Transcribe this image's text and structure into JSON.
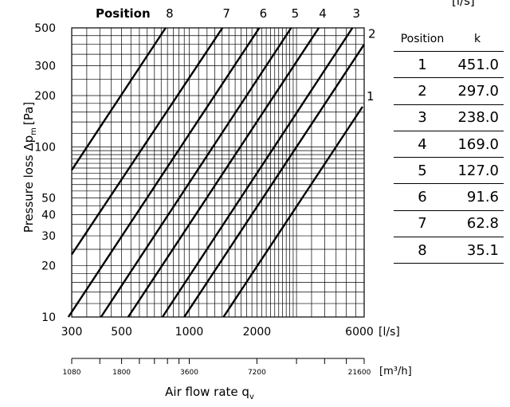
{
  "chart_data": {
    "type": "line",
    "title": "Position",
    "ylabel": "Pressure loss Δp",
    "ylabel_sub": "m",
    "ylabel_unit": "[Pa]",
    "xlabel": "Air flow rate q",
    "xlabel_sub": "v",
    "x_scale": "log",
    "y_scale": "log",
    "xlim": [
      300,
      6000
    ],
    "ylim": [
      10,
      500
    ],
    "x_unit_ls": "[l/s]",
    "x_unit_m3h": "[m³/h]",
    "x_ticks": [
      300,
      500,
      1000,
      2000,
      6000
    ],
    "x_tick_labels": [
      "300",
      "500",
      "1000",
      "2000",
      "6000"
    ],
    "x2_tick_labels": [
      "1080",
      "1800",
      "3600",
      "7200",
      "21600"
    ],
    "y_ticks": [
      10,
      20,
      30,
      40,
      50,
      100,
      200,
      300,
      500
    ],
    "y_tick_labels": [
      "10",
      "20",
      "30",
      "40",
      "50",
      "100",
      "200",
      "300",
      "500"
    ],
    "grid": true,
    "series": [
      {
        "name": "1",
        "k": 451.0,
        "points": [
          [
            1420,
            10
          ],
          [
            5900,
            172
          ]
        ]
      },
      {
        "name": "2",
        "k": 297.0,
        "points": [
          [
            950,
            10
          ],
          [
            6000,
            400
          ]
        ]
      },
      {
        "name": "3",
        "k": 238.0,
        "points": [
          [
            760,
            10
          ],
          [
            5320,
            500
          ]
        ]
      },
      {
        "name": "4",
        "k": 169.0,
        "points": [
          [
            535,
            10
          ],
          [
            3770,
            500
          ]
        ]
      },
      {
        "name": "5",
        "k": 127.0,
        "points": [
          [
            405,
            10
          ],
          [
            2840,
            500
          ]
        ]
      },
      {
        "name": "6",
        "k": 91.6,
        "points": [
          [
            290,
            10
          ],
          [
            2050,
            500
          ]
        ]
      },
      {
        "name": "7",
        "k": 62.8,
        "points": [
          [
            300,
            23.3
          ],
          [
            1405,
            500
          ]
        ]
      },
      {
        "name": "8",
        "k": 35.1,
        "points": [
          [
            300,
            73
          ],
          [
            785,
            500
          ]
        ]
      }
    ]
  },
  "table": {
    "unit": "[l/s]",
    "headers": [
      "Position",
      "k"
    ],
    "rows": [
      [
        "1",
        "451.0"
      ],
      [
        "2",
        "297.0"
      ],
      [
        "3",
        "238.0"
      ],
      [
        "4",
        "169.0"
      ],
      [
        "5",
        "127.0"
      ],
      [
        "6",
        "91.6"
      ],
      [
        "7",
        "62.8"
      ],
      [
        "8",
        "35.1"
      ]
    ]
  }
}
